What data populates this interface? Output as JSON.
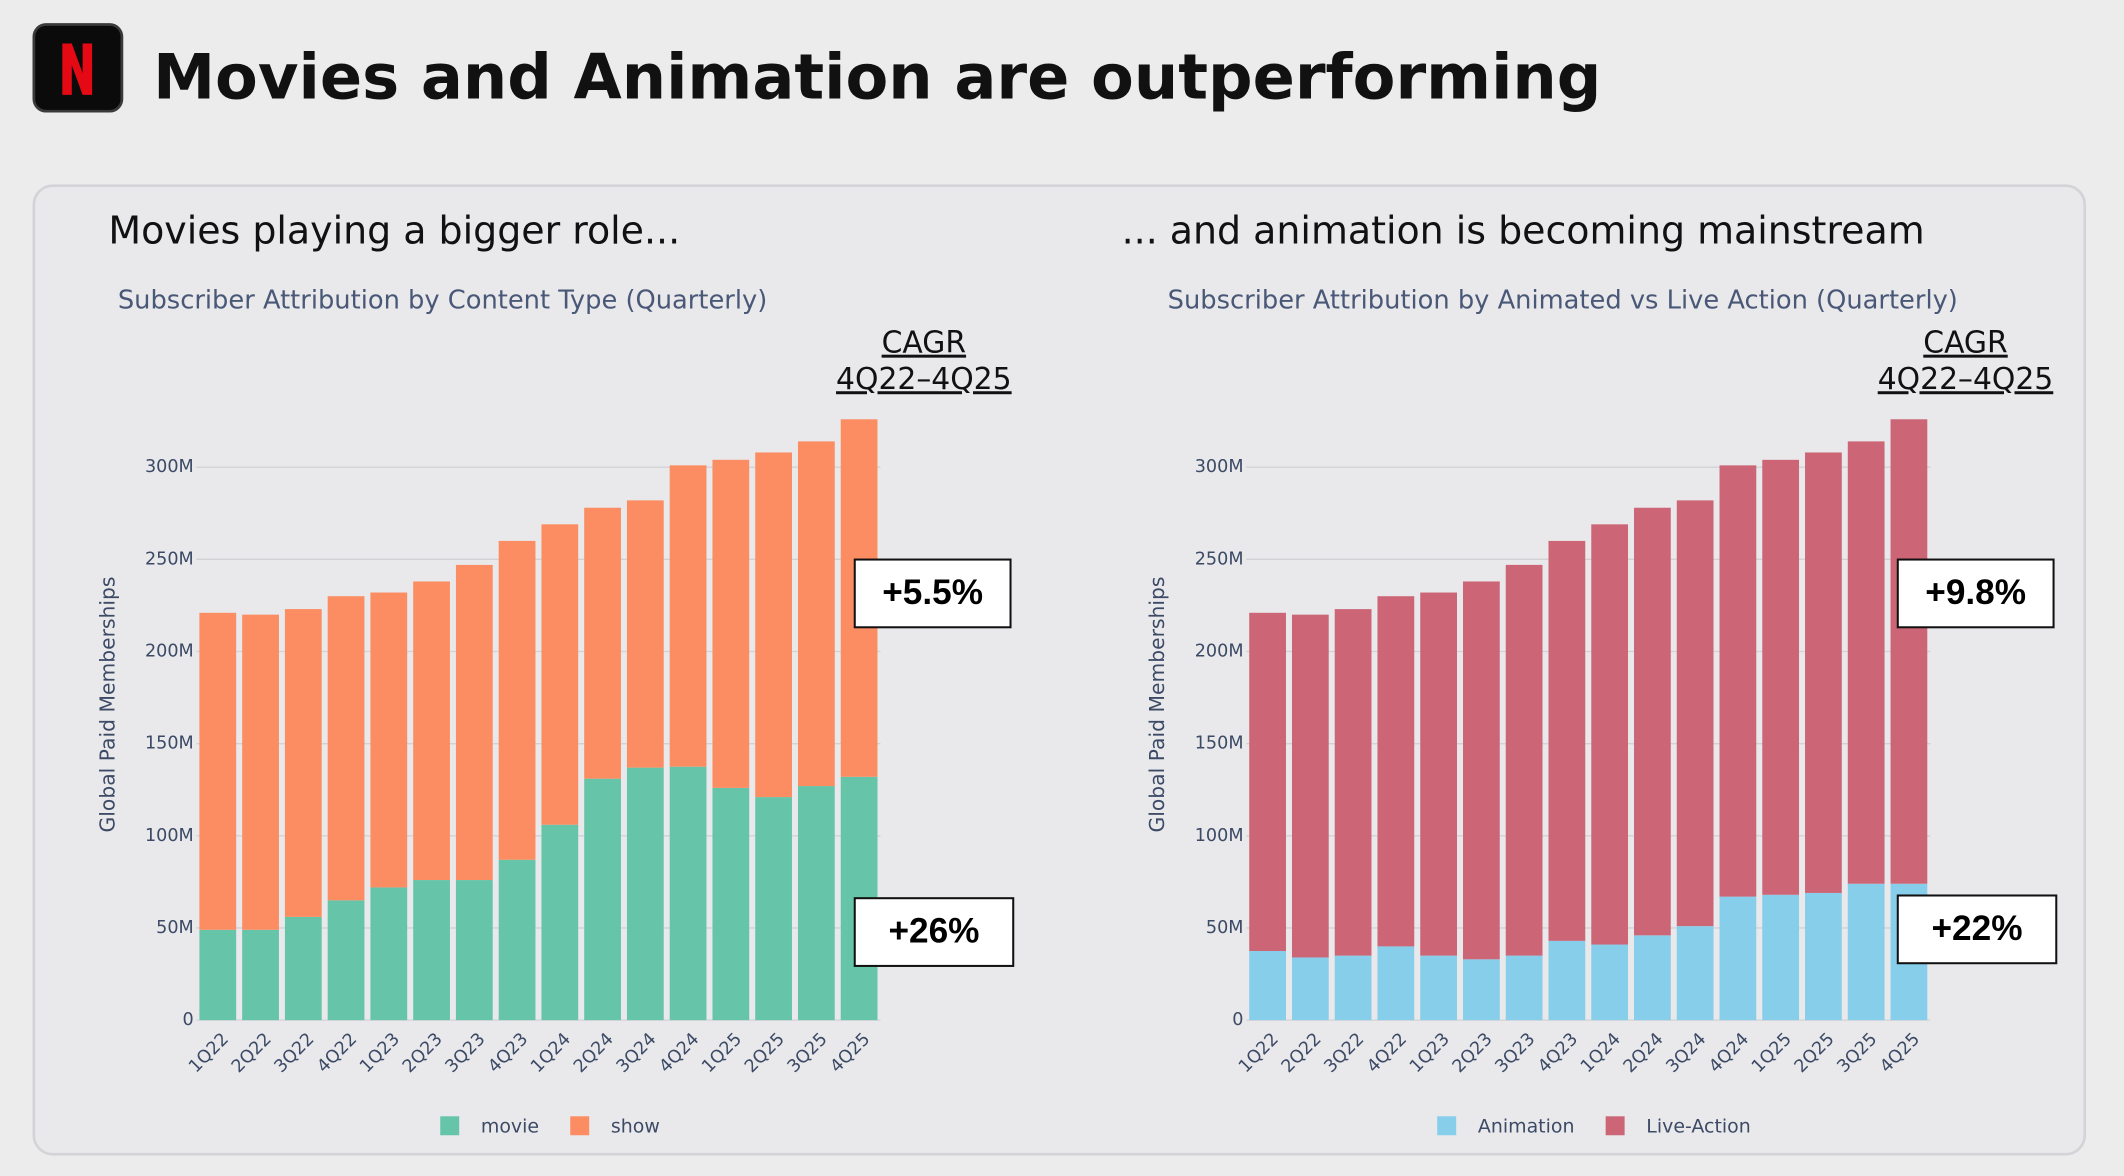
{
  "header": {
    "title": "Movies and Animation are outperforming"
  },
  "chart_data": [
    {
      "type": "stacked-bar",
      "heading": "Movies playing a bigger role...",
      "title": "Subscriber Attribution by Content Type (Quarterly)",
      "y_label": "Global Paid Memberships",
      "cagr_title": "CAGR",
      "cagr_period": "4Q22–4Q25",
      "cagr_values": [
        "+5.5%",
        "+26%"
      ],
      "categories": [
        "1Q22",
        "2Q22",
        "3Q22",
        "4Q22",
        "1Q23",
        "2Q23",
        "3Q23",
        "4Q23",
        "1Q24",
        "2Q24",
        "3Q24",
        "4Q24",
        "1Q25",
        "2Q25",
        "3Q25",
        "4Q25"
      ],
      "series": [
        {
          "name": "movie",
          "color": "#66c5a8",
          "values": [
            49,
            49,
            56,
            65,
            72,
            76,
            76,
            87,
            106,
            131,
            137,
            137.5,
            126,
            121,
            127,
            132
          ]
        },
        {
          "name": "show",
          "color": "#fc8d62",
          "values": [
            172,
            171,
            167,
            165,
            160,
            162,
            171,
            173,
            163,
            147,
            145,
            163.5,
            178,
            187,
            187,
            194
          ]
        }
      ],
      "ylim": [
        0,
        330
      ],
      "yticks": [
        0,
        {
          "value": 50,
          "label": "50M"
        },
        {
          "value": 100,
          "label": "100M"
        },
        {
          "value": 150,
          "label": "150M"
        },
        {
          "value": 200,
          "label": "200M"
        },
        {
          "value": 250,
          "label": "250M"
        },
        {
          "value": 300,
          "label": "300M"
        }
      ],
      "grid": true
    },
    {
      "type": "stacked-bar",
      "heading": "... and animation is becoming mainstream",
      "title": "Subscriber Attribution by Animated vs Live Action (Quarterly)",
      "y_label": "Global Paid Memberships",
      "cagr_title": "CAGR",
      "cagr_period": "4Q22–4Q25",
      "cagr_values": [
        "+9.8%",
        "+22%"
      ],
      "categories": [
        "1Q22",
        "2Q22",
        "3Q22",
        "4Q22",
        "1Q23",
        "2Q23",
        "3Q23",
        "4Q23",
        "1Q24",
        "2Q24",
        "3Q24",
        "4Q24",
        "1Q25",
        "2Q25",
        "3Q25",
        "4Q25"
      ],
      "series": [
        {
          "name": "Animation",
          "color": "#87ceeb",
          "values": [
            37.5,
            34,
            35,
            40,
            35,
            33,
            35,
            43,
            41,
            46,
            51,
            67,
            68,
            69,
            74,
            74
          ]
        },
        {
          "name": "Live-Action",
          "color": "#cc6677",
          "values": [
            183.5,
            186,
            188,
            190,
            197,
            205,
            212,
            217,
            228,
            232,
            231,
            234,
            236,
            239,
            240,
            252
          ]
        }
      ],
      "ylim": [
        0,
        330
      ],
      "yticks": [
        0,
        {
          "value": 50,
          "label": "50M"
        },
        {
          "value": 100,
          "label": "100M"
        },
        {
          "value": 150,
          "label": "150M"
        },
        {
          "value": 200,
          "label": "200M"
        },
        {
          "value": 250,
          "label": "250M"
        },
        {
          "value": 300,
          "label": "300M"
        }
      ],
      "grid": true
    }
  ]
}
